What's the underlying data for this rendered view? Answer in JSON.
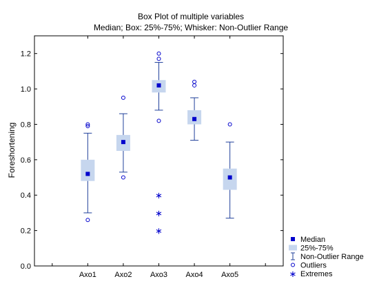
{
  "chart_data": {
    "type": "box",
    "title": "Box Plot of multiple variables",
    "subtitle": "Median; Box: 25%-75%; Whisker: Non-Outlier Range",
    "ylabel": "Foreshortening",
    "xlabel": "",
    "ylim": [
      0.0,
      1.3
    ],
    "yticks": [
      "0.0",
      "0.2",
      "0.4",
      "0.6",
      "0.8",
      "1.0",
      "1.2"
    ],
    "grid": false,
    "legend_position": "bottom-right",
    "colors": {
      "marker": "#0000cc",
      "box": "#c6d6ee",
      "whisker": "#1f3f9a"
    },
    "categories": [
      "Axo1",
      "Axo2",
      "Axo3",
      "Axo4",
      "Axo5"
    ],
    "series": [
      {
        "category": "Axo1",
        "median": 0.52,
        "q1": 0.48,
        "q3": 0.6,
        "whisker_low": 0.3,
        "whisker_high": 0.75,
        "outliers": [
          0.26,
          0.79,
          0.8
        ],
        "extremes": []
      },
      {
        "category": "Axo2",
        "median": 0.7,
        "q1": 0.65,
        "q3": 0.74,
        "whisker_low": 0.53,
        "whisker_high": 0.86,
        "outliers": [
          0.5,
          0.95
        ],
        "extremes": []
      },
      {
        "category": "Axo3",
        "median": 1.02,
        "q1": 0.98,
        "q3": 1.05,
        "whisker_low": 0.88,
        "whisker_high": 1.15,
        "outliers": [
          0.82,
          1.17,
          1.2
        ],
        "extremes": [
          0.2,
          0.3,
          0.4
        ]
      },
      {
        "category": "Axo4",
        "median": 0.83,
        "q1": 0.8,
        "q3": 0.88,
        "whisker_low": 0.71,
        "whisker_high": 0.95,
        "outliers": [
          1.02,
          1.04
        ],
        "extremes": []
      },
      {
        "category": "Axo5",
        "median": 0.5,
        "q1": 0.43,
        "q3": 0.55,
        "whisker_low": 0.27,
        "whisker_high": 0.7,
        "outliers": [
          0.8
        ],
        "extremes": []
      }
    ],
    "legend": [
      "Median",
      "25%-75%",
      "Non-Outlier Range",
      "Outliers",
      "Extremes"
    ]
  }
}
